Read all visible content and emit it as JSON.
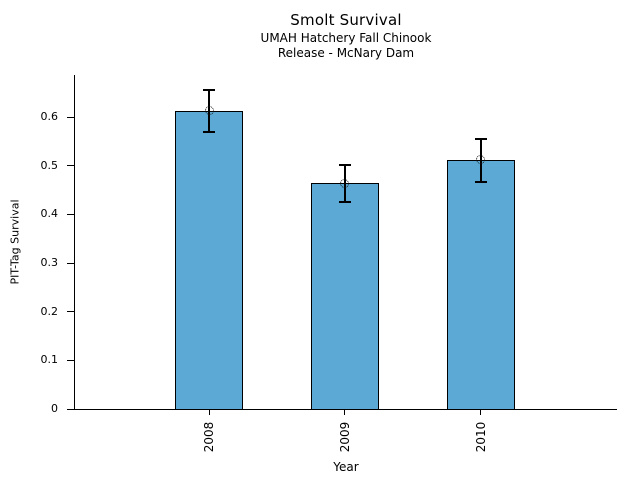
{
  "chart_data": {
    "type": "bar",
    "title": "Smolt Survival",
    "subtitle_lines": [
      "UMAH Hatchery Fall Chinook",
      "Release - McNary Dam"
    ],
    "xlabel": "Year",
    "ylabel": "PIT-Tag Survival",
    "categories": [
      "2008",
      "2009",
      "2010"
    ],
    "values": [
      0.613,
      0.464,
      0.512
    ],
    "error_low": [
      0.57,
      0.425,
      0.466
    ],
    "error_high": [
      0.655,
      0.501,
      0.555
    ],
    "ytick_labels": [
      "0",
      "0.1",
      "0.2",
      "0.3",
      "0.4",
      "0.5",
      "0.6"
    ],
    "ylim": [
      0,
      0.67
    ],
    "grid": false,
    "legend": "none",
    "marker": "open-dotted-circle",
    "colors": {
      "bar_fill": "#5BA9D4",
      "bar_edge": "#000000",
      "axis": "#000000",
      "text": "#000000",
      "background": "#ffffff"
    }
  }
}
